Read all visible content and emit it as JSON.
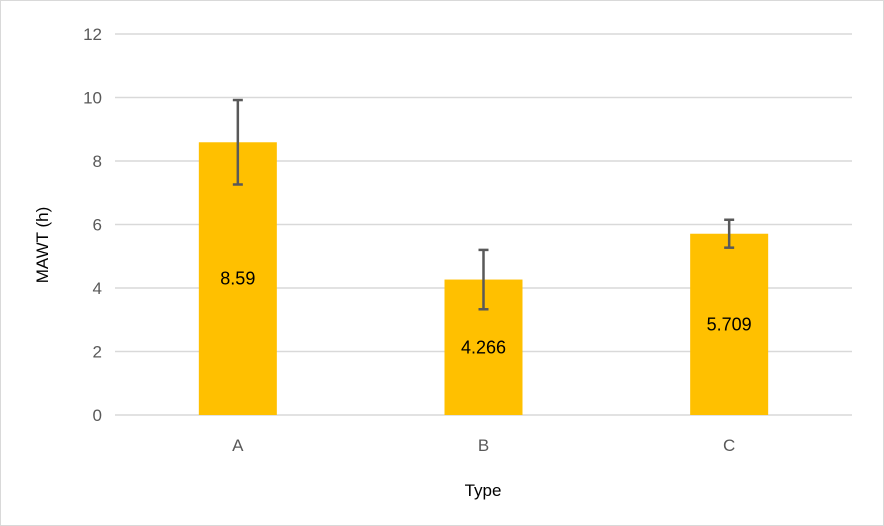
{
  "chart_data": {
    "type": "bar",
    "title": "",
    "xlabel": "Type",
    "ylabel": "MAWT (h)",
    "categories": [
      "A",
      "B",
      "C"
    ],
    "values": [
      8.59,
      4.266,
      5.709
    ],
    "value_labels": [
      "8.59",
      "4.266",
      "5.709"
    ],
    "error_bars": {
      "upper": [
        9.92,
        5.2,
        6.15
      ],
      "lower": [
        7.26,
        3.33,
        5.27
      ]
    },
    "ylim": [
      0,
      12
    ],
    "yticks": [
      0,
      2,
      4,
      6,
      8,
      10,
      12
    ],
    "ytick_labels": [
      "0",
      "2",
      "4",
      "6",
      "8",
      "10",
      "12"
    ],
    "grid": true,
    "legend": "none",
    "colors": {
      "bar": "#ffc000",
      "grid": "#d9d9d9",
      "error_bar": "#595959",
      "border": "#d9d9d9"
    }
  }
}
